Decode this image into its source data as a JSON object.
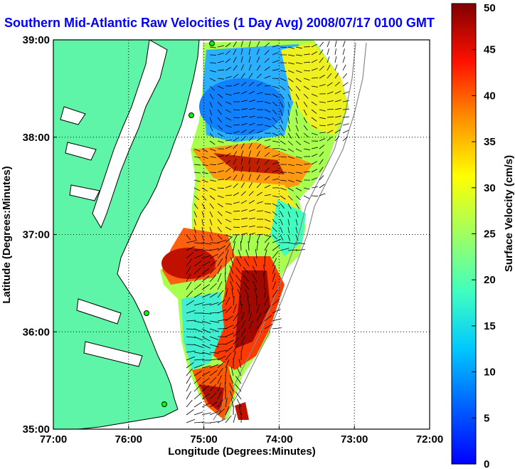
{
  "title": "Southern Mid-Atlantic Raw Velocities (1 Day Avg) 2008/07/17 0100 GMT",
  "map": {
    "xlabel": "Longitude (Degrees:Minutes)",
    "ylabel": "Latitude (Degrees:Minutes)",
    "xticks": [
      {
        "value": -77,
        "label": "77:00"
      },
      {
        "value": -76,
        "label": "76:00"
      },
      {
        "value": -75,
        "label": "75:00"
      },
      {
        "value": -74,
        "label": "74:00"
      },
      {
        "value": -73,
        "label": "73:00"
      },
      {
        "value": -72,
        "label": "72:00"
      }
    ],
    "yticks": [
      {
        "value": 35,
        "label": "35:00"
      },
      {
        "value": 36,
        "label": "36:00"
      },
      {
        "value": 37,
        "label": "37:00"
      },
      {
        "value": 38,
        "label": "38:00"
      },
      {
        "value": 39,
        "label": "39:00"
      }
    ],
    "xlim": [
      -77,
      -72
    ],
    "ylim": [
      35,
      39
    ],
    "grid": true,
    "land_color": "#5ef5a8"
  },
  "colorbar": {
    "label": "Surface Velocity (cm/s)",
    "min": 0,
    "max": 50,
    "ticks": [
      0,
      5,
      10,
      15,
      20,
      25,
      30,
      35,
      40,
      45,
      50
    ]
  },
  "chart_data": {
    "type": "heatmap",
    "title": "Southern Mid-Atlantic Raw Velocities (1 Day Avg) 2008/07/17 0100 GMT",
    "xlabel": "Longitude (Degrees:Minutes)",
    "ylabel": "Latitude (Degrees:Minutes)",
    "xlim": [
      -77,
      -72
    ],
    "ylim": [
      35,
      39
    ],
    "value_label": "Surface Velocity (cm/s)",
    "value_range": [
      0,
      50
    ],
    "regions": [
      {
        "lon": -74.6,
        "lat": 38.3,
        "speed": 8
      },
      {
        "lon": -74.3,
        "lat": 38.6,
        "speed": 12
      },
      {
        "lon": -73.6,
        "lat": 38.5,
        "speed": 25
      },
      {
        "lon": -74.3,
        "lat": 37.7,
        "speed": 40
      },
      {
        "lon": -74.6,
        "lat": 37.2,
        "speed": 24
      },
      {
        "lon": -75.6,
        "lat": 36.7,
        "speed": 45
      },
      {
        "lon": -74.4,
        "lat": 36.1,
        "speed": 42
      },
      {
        "lon": -74.9,
        "lat": 35.6,
        "speed": 18
      },
      {
        "lon": -75.0,
        "lat": 35.2,
        "speed": 40
      }
    ]
  }
}
